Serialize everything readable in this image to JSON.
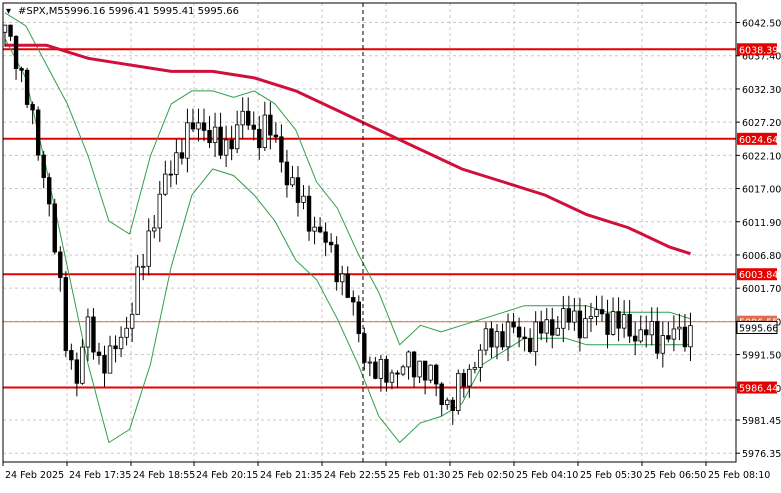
{
  "header": {
    "symbol": "#SPX,M5",
    "ohlc": "5996.16 5996.41 5995.41 5995.66"
  },
  "colors": {
    "background": "#ffffff",
    "frame": "#000000",
    "grid": "#c8c8c8",
    "candle": "#000000",
    "bands": "#2e9e4a",
    "ma": "#d0103a",
    "level": "#e60000",
    "current_price": "#ffffff",
    "bid_line": "#e06a4a"
  },
  "chart_data": {
    "type": "candlestick",
    "symbol": "#SPX",
    "timeframe": "M5",
    "last": {
      "open": 5996.16,
      "high": 5996.41,
      "low": 5995.41,
      "close": 5995.66
    },
    "y_range": [
      5975.0,
      6045.5
    ],
    "price_ticks": [
      "6042.50",
      "6037.40",
      "6032.30",
      "6027.20",
      "6022.10",
      "6017.00",
      "6011.90",
      "6006.80",
      "6001.70",
      "5996.60",
      "5991.50",
      "5986.40",
      "5981.45",
      "5976.35"
    ],
    "time_ticks": [
      "24 Feb 2025",
      "24 Feb 17:35",
      "24 Feb 18:55",
      "24 Feb 20:15",
      "24 Feb 21:35",
      "24 Feb 22:55",
      "25 Feb 01:30",
      "25 Feb 02:50",
      "25 Feb 04:10",
      "25 Feb 05:30",
      "25 Feb 06:50",
      "25 Feb 08:10"
    ],
    "levels": [
      {
        "label": "6038.39",
        "value": 6038.39
      },
      {
        "label": "6024.64",
        "value": 6024.64
      },
      {
        "label": "6003.84",
        "value": 6003.84
      },
      {
        "label": "5986.44",
        "value": 5986.44
      }
    ],
    "current_price": {
      "label": "5995.66",
      "value": 5995.66
    },
    "bid_line": {
      "label": "5996.55",
      "value": 5996.55
    },
    "session_break_tick": "24 Feb 22:55",
    "grid": true,
    "close_path": [
      [
        0,
        6041
      ],
      [
        1,
        6038
      ],
      [
        2,
        6032
      ],
      [
        3,
        6024
      ],
      [
        4,
        6018
      ],
      [
        5,
        6005
      ],
      [
        6,
        5992
      ],
      [
        7,
        5988
      ],
      [
        8,
        5996
      ],
      [
        9,
        5991
      ],
      [
        10,
        5990
      ],
      [
        11,
        5994
      ],
      [
        12,
        5997
      ],
      [
        13,
        6004
      ],
      [
        14,
        6011
      ],
      [
        15,
        6016
      ],
      [
        16,
        6020
      ],
      [
        17,
        6024
      ],
      [
        18,
        6026
      ],
      [
        19,
        6027
      ],
      [
        20,
        6025
      ],
      [
        21,
        6022
      ],
      [
        22,
        6026
      ],
      [
        23,
        6028
      ],
      [
        24,
        6025
      ],
      [
        25,
        6027
      ],
      [
        26,
        6024
      ],
      [
        27,
        6020
      ],
      [
        28,
        6016
      ],
      [
        29,
        6013
      ],
      [
        30,
        6011
      ],
      [
        31,
        6008
      ],
      [
        32,
        6005
      ],
      [
        33,
        6001
      ],
      [
        34,
        5995
      ],
      [
        35,
        5990
      ],
      [
        36,
        5988
      ],
      [
        37,
        5989
      ],
      [
        38,
        5989
      ],
      [
        39,
        5990
      ],
      [
        40,
        5990
      ],
      [
        41,
        5988
      ],
      [
        42,
        5985
      ],
      [
        43,
        5984
      ],
      [
        44,
        5987
      ],
      [
        45,
        5990
      ],
      [
        46,
        5993
      ],
      [
        47,
        5994
      ],
      [
        48,
        5995
      ],
      [
        49,
        5995
      ],
      [
        50,
        5994
      ],
      [
        51,
        5994
      ],
      [
        52,
        5996
      ],
      [
        53,
        5996
      ],
      [
        54,
        5997
      ],
      [
        55,
        5997
      ],
      [
        56,
        5996
      ],
      [
        57,
        5998
      ],
      [
        58,
        5997
      ],
      [
        59,
        5996
      ],
      [
        60,
        5996
      ],
      [
        61,
        5994
      ],
      [
        62,
        5995
      ],
      [
        63,
        5994
      ],
      [
        64,
        5994
      ],
      [
        65,
        5995
      ],
      [
        66,
        5995
      ]
    ],
    "bands_upper": [
      [
        0,
        6044
      ],
      [
        2,
        6042
      ],
      [
        4,
        6036
      ],
      [
        6,
        6030
      ],
      [
        8,
        6022
      ],
      [
        10,
        6012
      ],
      [
        12,
        6010
      ],
      [
        14,
        6022
      ],
      [
        16,
        6030
      ],
      [
        18,
        6032
      ],
      [
        20,
        6032
      ],
      [
        22,
        6031
      ],
      [
        24,
        6032
      ],
      [
        26,
        6030
      ],
      [
        28,
        6026
      ],
      [
        30,
        6018
      ],
      [
        32,
        6014
      ],
      [
        34,
        6007
      ],
      [
        36,
        6001
      ],
      [
        38,
        5993
      ],
      [
        40,
        5996
      ],
      [
        42,
        5995
      ],
      [
        44,
        5996
      ],
      [
        46,
        5997
      ],
      [
        48,
        5998
      ],
      [
        50,
        5999
      ],
      [
        52,
        5999
      ],
      [
        54,
        5999
      ],
      [
        56,
        5999
      ],
      [
        58,
        5998
      ],
      [
        60,
        5998
      ],
      [
        62,
        5998
      ],
      [
        64,
        5998
      ],
      [
        66,
        5997
      ]
    ],
    "bands_lower": [
      [
        0,
        6040
      ],
      [
        2,
        6034
      ],
      [
        4,
        6020
      ],
      [
        6,
        6005
      ],
      [
        8,
        5990
      ],
      [
        10,
        5978
      ],
      [
        12,
        5980
      ],
      [
        14,
        5990
      ],
      [
        16,
        6005
      ],
      [
        18,
        6016
      ],
      [
        20,
        6020
      ],
      [
        22,
        6019
      ],
      [
        24,
        6016
      ],
      [
        26,
        6012
      ],
      [
        28,
        6006
      ],
      [
        30,
        6003
      ],
      [
        32,
        5997
      ],
      [
        34,
        5990
      ],
      [
        36,
        5982
      ],
      [
        38,
        5978
      ],
      [
        40,
        5981
      ],
      [
        42,
        5982
      ],
      [
        44,
        5984
      ],
      [
        46,
        5990
      ],
      [
        48,
        5992
      ],
      [
        50,
        5994
      ],
      [
        52,
        5994
      ],
      [
        54,
        5994
      ],
      [
        56,
        5993
      ],
      [
        58,
        5993
      ],
      [
        60,
        5993
      ],
      [
        62,
        5993
      ],
      [
        64,
        5993
      ],
      [
        66,
        5993
      ]
    ],
    "ma_line": [
      [
        0,
        6039
      ],
      [
        4,
        6039
      ],
      [
        8,
        6037
      ],
      [
        12,
        6036
      ],
      [
        16,
        6035
      ],
      [
        20,
        6035
      ],
      [
        24,
        6034
      ],
      [
        28,
        6032
      ],
      [
        32,
        6029
      ],
      [
        36,
        6026
      ],
      [
        40,
        6023
      ],
      [
        44,
        6020
      ],
      [
        48,
        6018
      ],
      [
        52,
        6016
      ],
      [
        56,
        6013
      ],
      [
        60,
        6011
      ],
      [
        64,
        6008
      ],
      [
        66,
        6007
      ]
    ]
  }
}
